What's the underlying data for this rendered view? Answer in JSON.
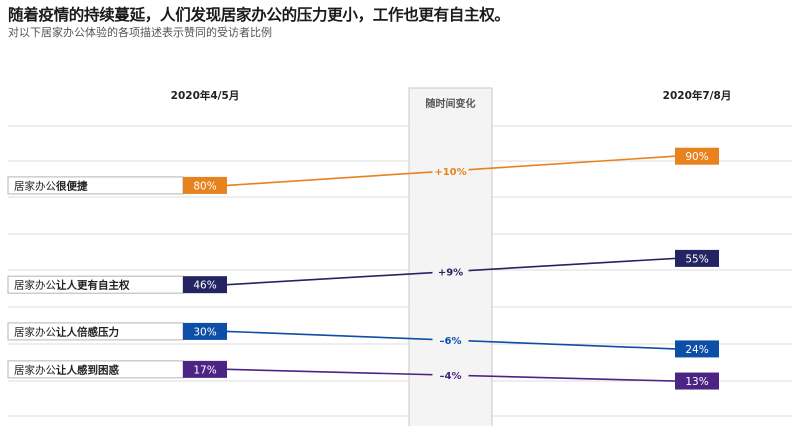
{
  "header": {
    "title": "随着疫情的持续蔓延，人们发现居家办公的压力更小，工作也更有自主权。",
    "subtitle": "对以下居家办公体验的各项描述表示赞同的受访者比例"
  },
  "chart_data": {
    "type": "slope",
    "x": [
      "2020年4/5月",
      "2020年7/8月"
    ],
    "middle_column_label": "随时间变化",
    "ylim": [
      0,
      100
    ],
    "series": [
      {
        "prefix": "居家办公",
        "highlight": "很便捷",
        "values": [
          80,
          90
        ],
        "value_labels": [
          "80%",
          "90%"
        ],
        "change": "+10%",
        "color": "#e8821e"
      },
      {
        "prefix": "居家办公",
        "highlight": "让人更有自主权",
        "values": [
          46,
          55
        ],
        "value_labels": [
          "46%",
          "55%"
        ],
        "change": "+9%",
        "color": "#242462"
      },
      {
        "prefix": "居家办公",
        "highlight": "让人倍感压力",
        "values": [
          30,
          24
        ],
        "value_labels": [
          "30%",
          "24%"
        ],
        "change": "–6%",
        "color": "#0d4ea6"
      },
      {
        "prefix": "居家办公",
        "highlight": "让人感到困惑",
        "values": [
          17,
          13
        ],
        "value_labels": [
          "17%",
          "13%"
        ],
        "change": "–4%",
        "color": "#4b2484"
      }
    ]
  }
}
